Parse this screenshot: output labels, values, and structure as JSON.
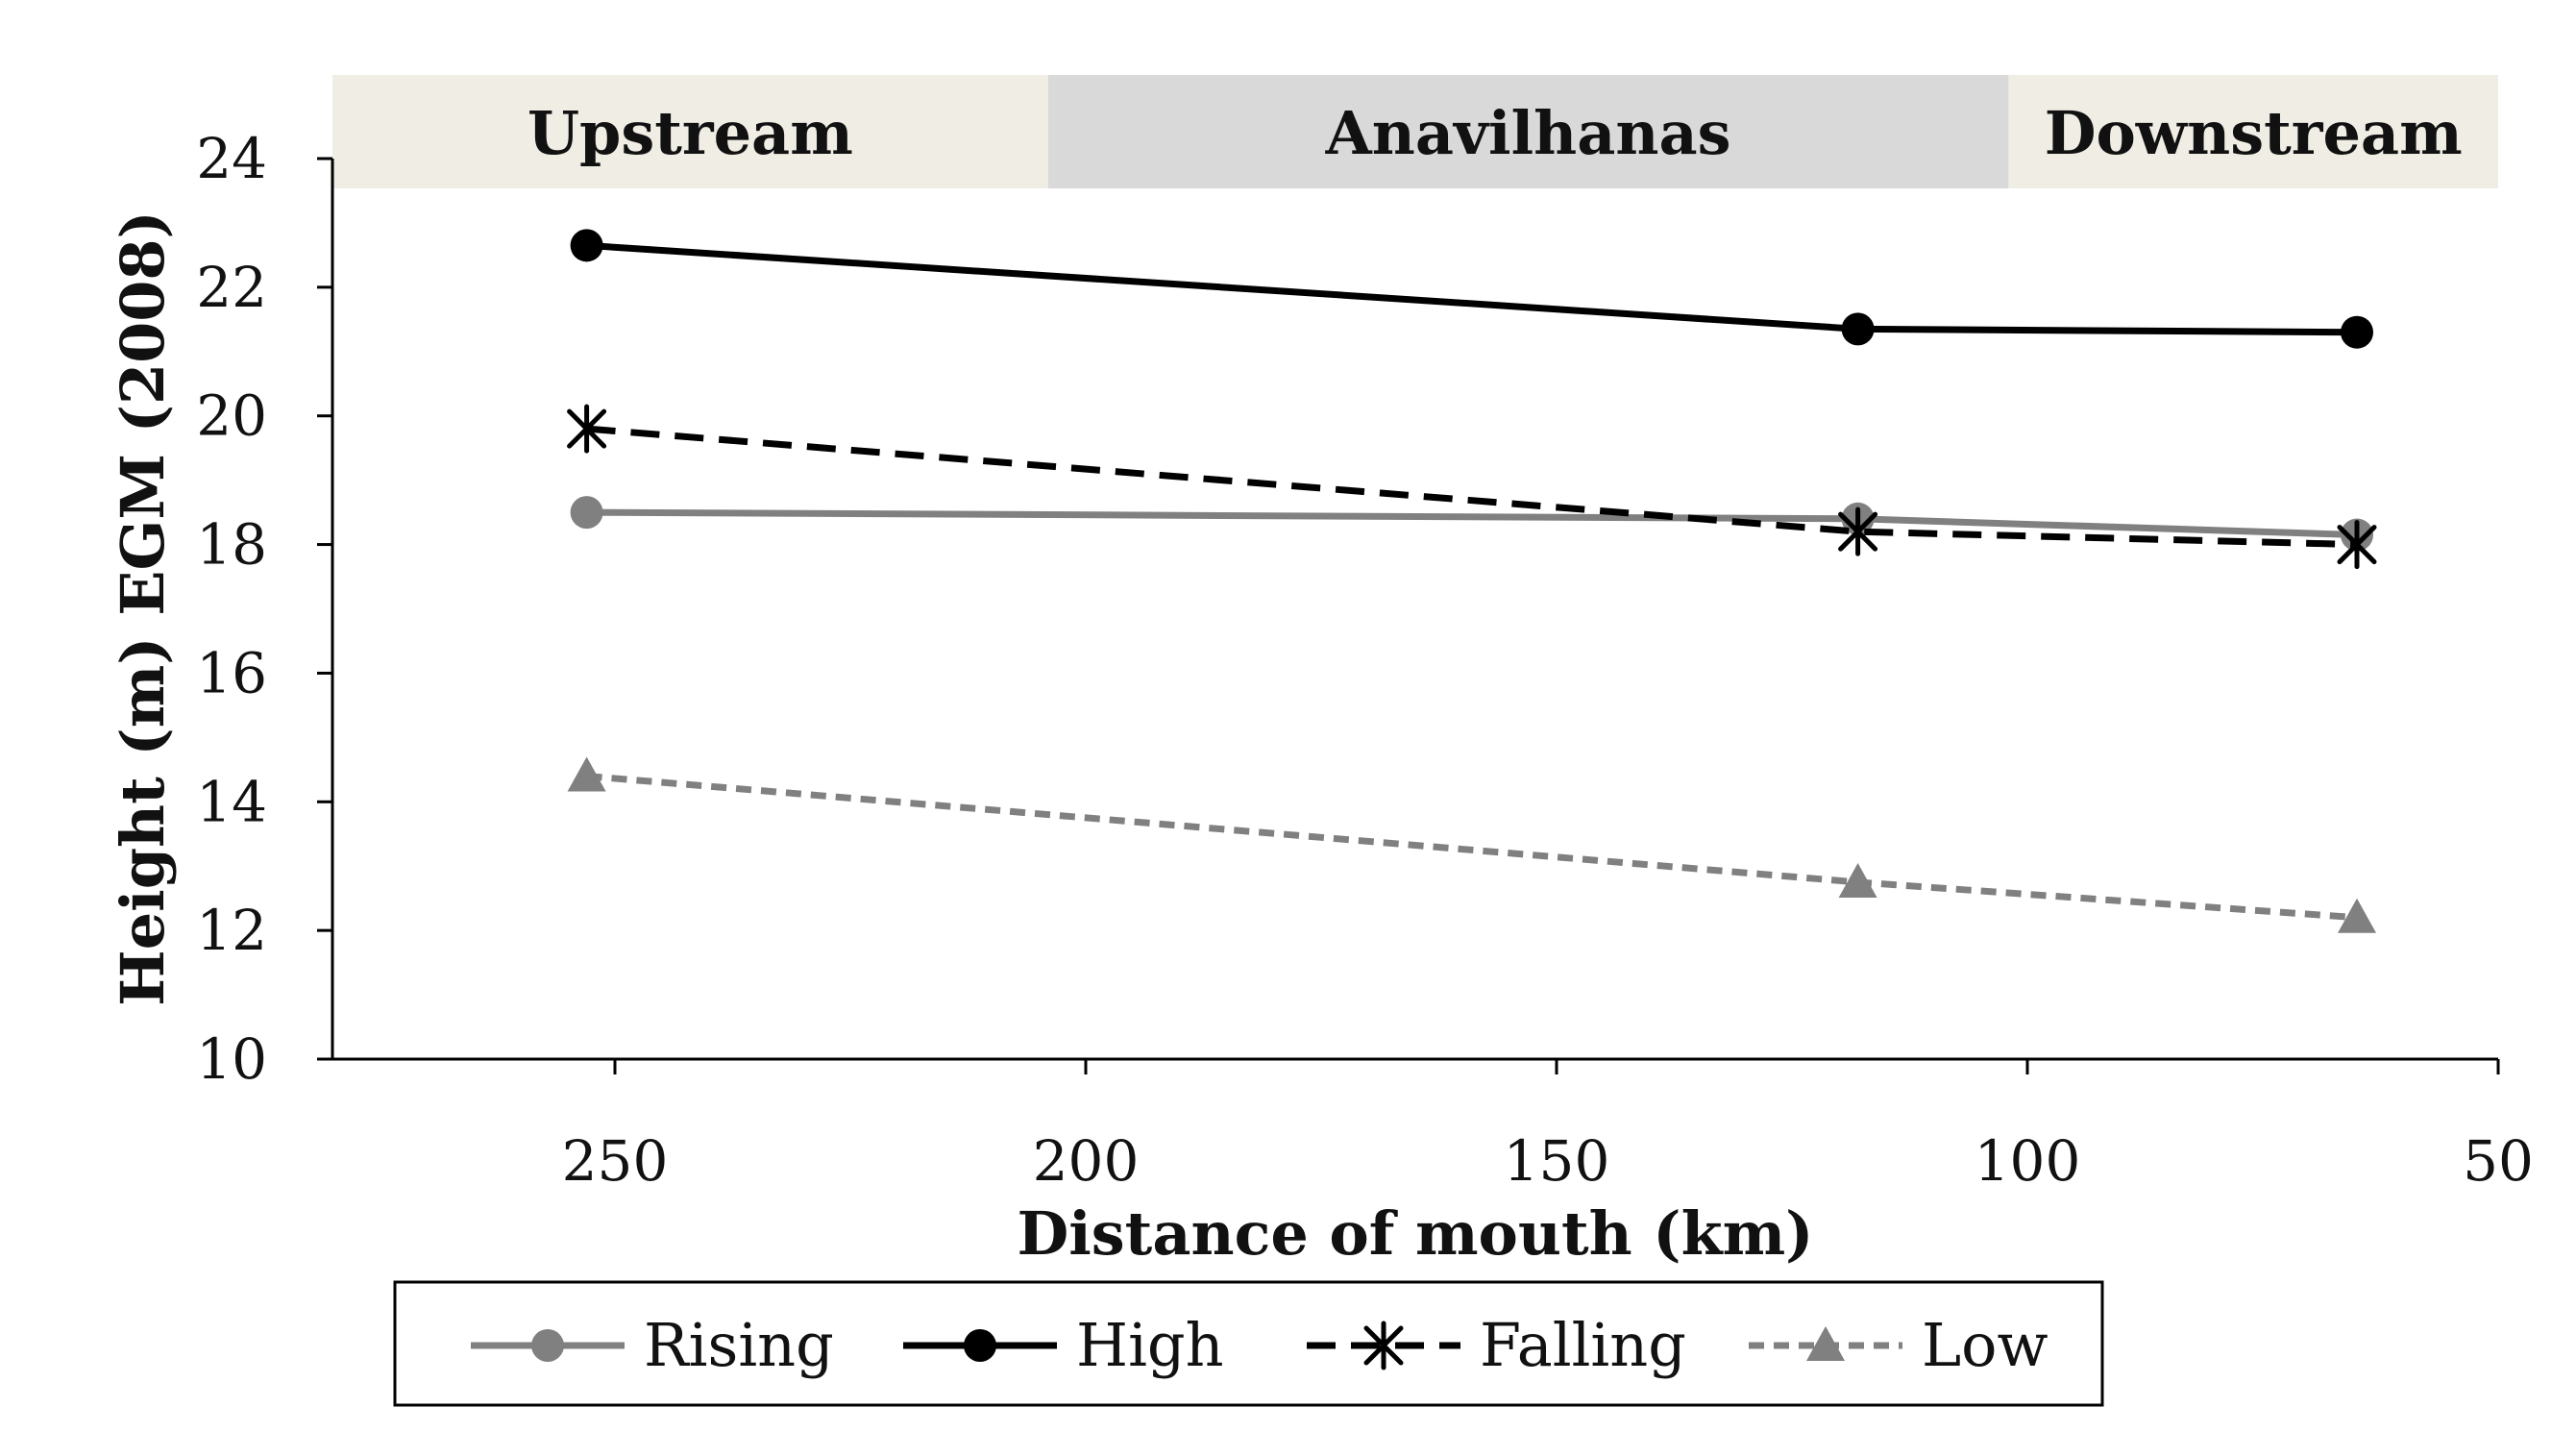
{
  "chart_data": {
    "type": "line",
    "xlabel": "Distance of mouth (km)",
    "ylabel": "Height (m) EGM (2008)",
    "xlim": [
      280,
      50
    ],
    "ylim": [
      10,
      24
    ],
    "x_ticks": [
      "250",
      "200",
      "150",
      "100",
      "50"
    ],
    "y_ticks": [
      "10",
      "12",
      "14",
      "16",
      "18",
      "20",
      "22",
      "24"
    ],
    "grid": false,
    "legend_position": "bottom",
    "x": [
      253,
      118,
      65
    ],
    "regions": [
      {
        "label": "Upstream",
        "from": 280,
        "to": 204,
        "color": "#efede4"
      },
      {
        "label": "Anavilhanas",
        "from": 204,
        "to": 102,
        "color": "#d9d9d9"
      },
      {
        "label": "Downstream",
        "from": 102,
        "to": 50,
        "color": "#efede4"
      }
    ],
    "series": [
      {
        "name": "Rising",
        "values": [
          18.5,
          18.4,
          18.15
        ],
        "color": "#808080",
        "dash": "solid",
        "marker": "circle"
      },
      {
        "name": "High",
        "values": [
          22.65,
          21.35,
          21.3
        ],
        "color": "#000000",
        "dash": "solid",
        "marker": "circle"
      },
      {
        "name": "Falling",
        "values": [
          19.8,
          18.2,
          18.0
        ],
        "color": "#000000",
        "dash": "dashed",
        "marker": "asterisk"
      },
      {
        "name": "Low",
        "values": [
          14.4,
          12.75,
          12.2
        ],
        "color": "#808080",
        "dash": "dotted",
        "marker": "triangle"
      }
    ]
  }
}
